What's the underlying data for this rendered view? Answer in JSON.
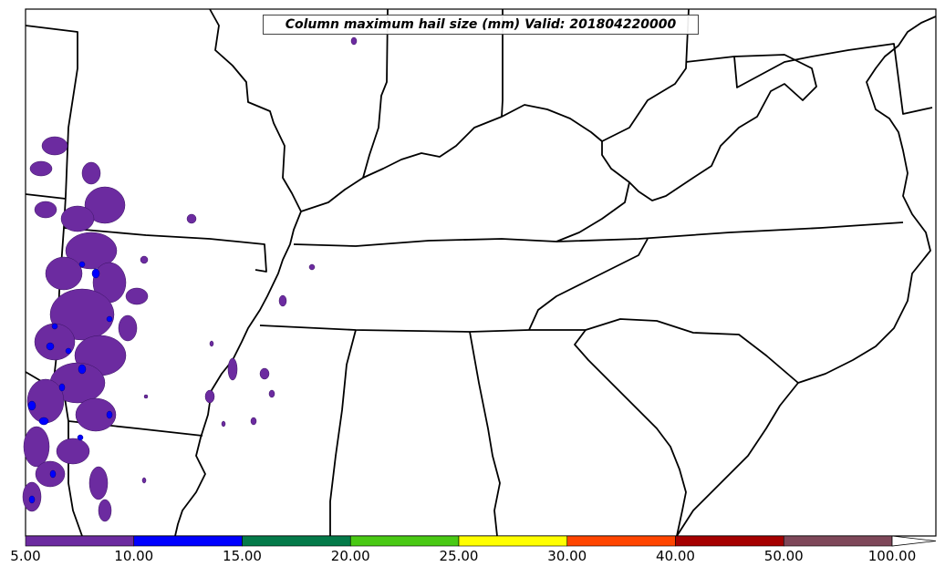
{
  "map": {
    "title": "Column maximum hail size (mm) Valid: 201804220000",
    "variable": "Column maximum hail size",
    "units": "mm",
    "valid_time": "201804220000",
    "region": "Southeastern United States"
  },
  "colorbar": {
    "extend": "max",
    "bins": [
      {
        "label": "5.00",
        "color": "#6c2ba0"
      },
      {
        "label": "10.00",
        "color": "#0000ff"
      },
      {
        "label": "15.00",
        "color": "#047a49"
      },
      {
        "label": "20.00",
        "color": "#49c914"
      },
      {
        "label": "25.00",
        "color": "#ffff00"
      },
      {
        "label": "30.00",
        "color": "#ff4500"
      },
      {
        "label": "40.00",
        "color": "#a50000"
      },
      {
        "label": "50.00",
        "color": "#7e4759"
      },
      {
        "label": "100.00",
        "color": "#ffffff"
      }
    ]
  }
}
